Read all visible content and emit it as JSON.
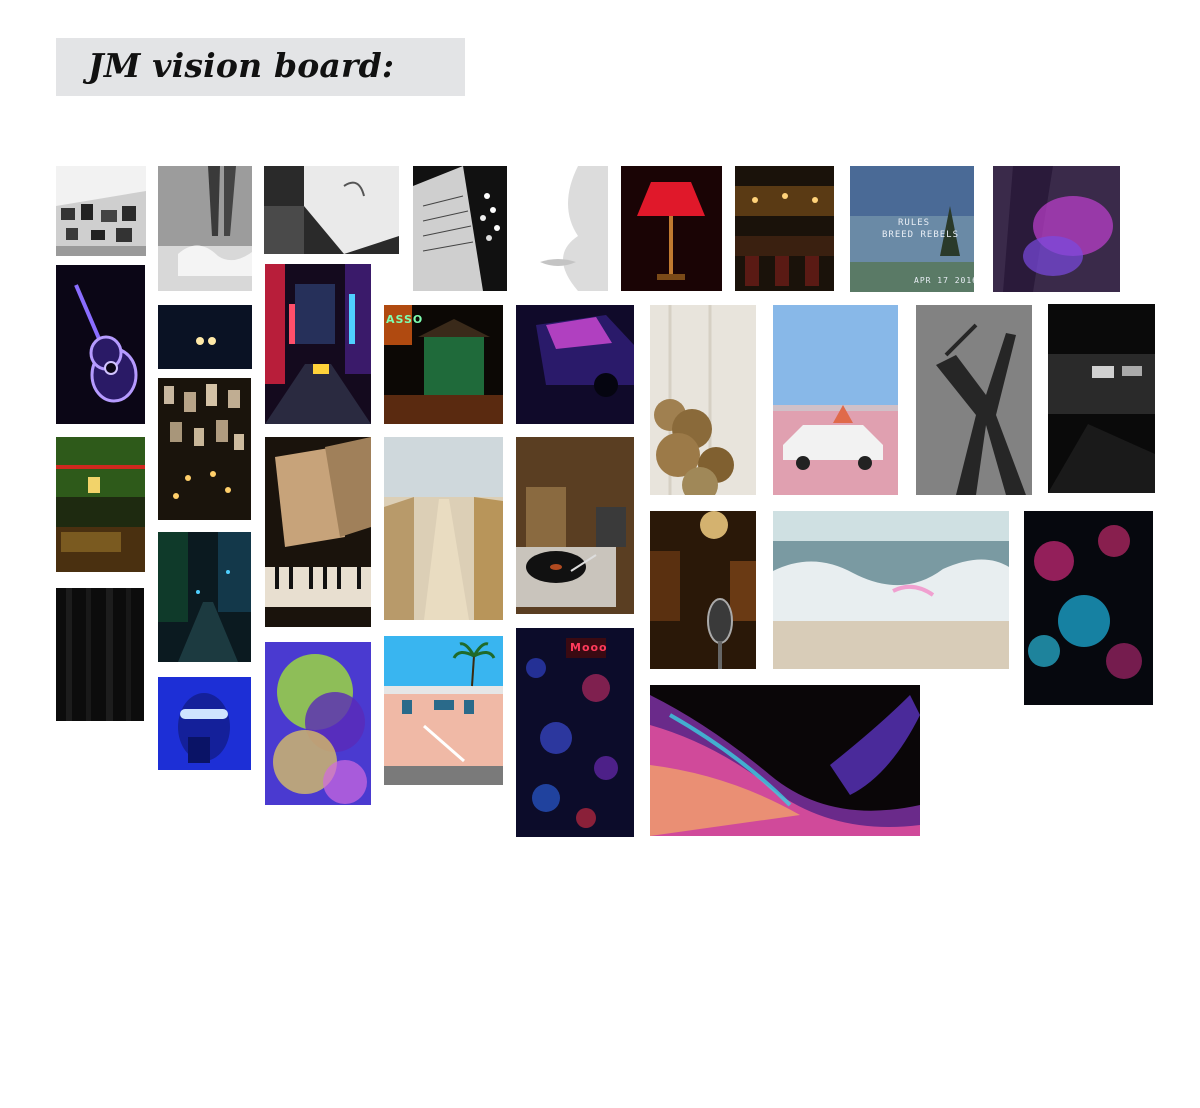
{
  "board": {
    "title": "JM vision board:"
  },
  "tiles": {
    "poster_caption_line1": "RULES",
    "poster_caption_line2": "BREED REBELS",
    "poster_caption_date": "APR 17 2016",
    "motel_sign_text": "ASSO",
    "alley_sign_text": "Mooo"
  },
  "colors": {
    "title_background": "#e3e4e6",
    "page_background": "#ffffff"
  }
}
